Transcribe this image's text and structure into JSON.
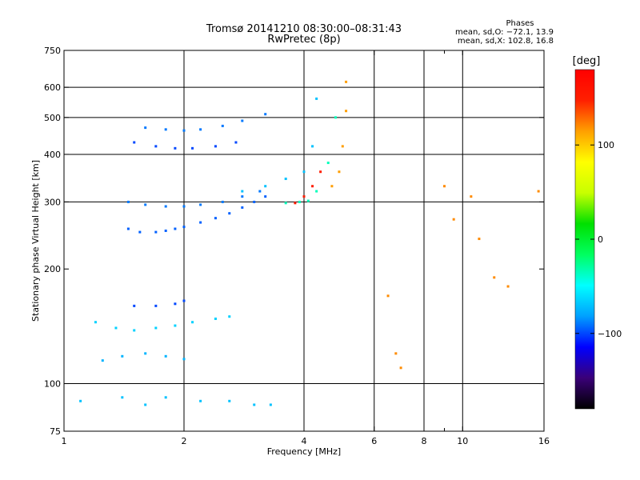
{
  "chart_data": {
    "type": "scatter",
    "title": "Tromsø 20141210 08:30:00–08:31:43",
    "subtitle": "RwPretec (8p)",
    "xlabel": "Frequency [MHz]",
    "ylabel": "Stationary phase Virtual Height [km]",
    "x_scale": "log",
    "y_scale": "log",
    "xlim": [
      1,
      16
    ],
    "ylim": [
      75,
      750
    ],
    "x_ticks": [
      1,
      2,
      4,
      6,
      8,
      10,
      16
    ],
    "x_tick_labels": [
      "1",
      "2",
      "4",
      "6",
      "8",
      "10",
      "16"
    ],
    "x_minor_ticks": [
      9
    ],
    "x_gridlines": [
      2,
      4,
      6,
      8,
      10
    ],
    "y_ticks": [
      75,
      100,
      200,
      300,
      400,
      500,
      600,
      750
    ],
    "y_tick_labels": [
      "75",
      "100",
      "200",
      "300",
      "400",
      "500",
      "600",
      "750"
    ],
    "y_gridlines": [
      100,
      300,
      400,
      500,
      600
    ],
    "grid": "partial",
    "phase_annotation": {
      "heading": "Phases",
      "line_o": "mean, sd,O: −72.1, 13.9",
      "line_x": "mean, sd,X: 102.8, 16.8"
    },
    "colorbar": {
      "label": "[deg]",
      "range": [
        -180,
        180
      ],
      "ticks": [
        100,
        0,
        -100
      ],
      "tick_labels": [
        "100",
        "0",
        "−100"
      ],
      "colormap": [
        "#000000",
        "#3a0078",
        "#0000ff",
        "#00a0ff",
        "#00ffff",
        "#00ff60",
        "#00e000",
        "#c8ff00",
        "#ffff00",
        "#ffa000",
        "#ff2000",
        "#ff0000"
      ]
    },
    "series": [
      {
        "x": [
          1.45,
          1.55,
          1.7,
          1.8,
          1.9,
          2.0,
          2.2,
          2.4,
          2.6,
          2.8,
          3.0,
          3.2
        ],
        "y": [
          255,
          250,
          250,
          252,
          255,
          258,
          265,
          272,
          280,
          290,
          300,
          310
        ],
        "phase": -95
      },
      {
        "x": [
          1.45,
          1.6,
          1.8,
          2.0,
          2.2,
          2.5,
          2.8,
          3.1
        ],
        "y": [
          300,
          295,
          292,
          292,
          295,
          300,
          310,
          320
        ],
        "phase": -90
      },
      {
        "x": [
          1.5,
          1.7,
          1.9,
          2.1,
          2.4,
          2.7
        ],
        "y": [
          430,
          420,
          415,
          415,
          420,
          430
        ],
        "phase": -100
      },
      {
        "x": [
          1.6,
          1.8,
          2.0,
          2.2,
          2.5,
          2.8,
          3.2
        ],
        "y": [
          470,
          465,
          462,
          465,
          475,
          490,
          510
        ],
        "phase": -90
      },
      {
        "x": [
          2.8,
          3.2,
          3.6,
          4.0,
          4.2,
          4.3
        ],
        "y": [
          320,
          330,
          345,
          360,
          420,
          560
        ],
        "phase": -70
      },
      {
        "x": [
          3.6,
          3.9,
          4.1,
          4.3,
          4.6,
          4.8
        ],
        "y": [
          298,
          300,
          302,
          320,
          380,
          500
        ],
        "phase": -35
      },
      {
        "x": [
          4.7,
          4.9,
          5.0,
          5.1,
          5.1
        ],
        "y": [
          330,
          360,
          420,
          520,
          620
        ],
        "phase": 115
      },
      {
        "x": [
          3.8,
          4.0,
          4.2,
          4.4
        ],
        "y": [
          298,
          310,
          330,
          360
        ],
        "phase": 150
      },
      {
        "x": [
          1.2,
          1.35,
          1.5,
          1.7,
          1.9,
          2.1,
          2.4,
          2.6
        ],
        "y": [
          145,
          140,
          138,
          140,
          142,
          145,
          148,
          150
        ],
        "phase": -65
      },
      {
        "x": [
          1.25,
          1.4,
          1.6,
          1.8,
          2.0
        ],
        "y": [
          115,
          118,
          120,
          118,
          116
        ],
        "phase": -75
      },
      {
        "x": [
          1.5,
          1.7,
          1.9,
          2.0
        ],
        "y": [
          160,
          160,
          162,
          165
        ],
        "phase": -100
      },
      {
        "x": [
          1.1,
          1.4,
          1.6,
          1.8,
          2.2,
          2.6,
          3.0,
          3.3
        ],
        "y": [
          90,
          92,
          88,
          92,
          90,
          90,
          88,
          88
        ],
        "phase": -70
      },
      {
        "x": [
          9.0,
          9.5,
          6.5,
          6.8,
          7.0,
          10.5,
          11.0,
          12.0,
          13.0,
          15.5
        ],
        "y": [
          330,
          270,
          170,
          120,
          110,
          310,
          240,
          190,
          180,
          320
        ],
        "phase": 120
      }
    ]
  }
}
